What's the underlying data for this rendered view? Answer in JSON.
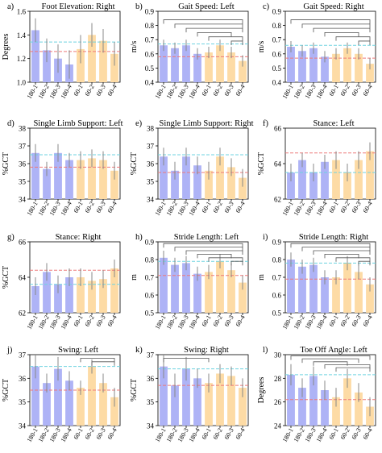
{
  "colors": {
    "blue": "#aeb3f6",
    "orange": "#fddba5",
    "cyan_line": "#6fd3e0",
    "red_line": "#ee7a7a",
    "error": "#888888",
    "bracket": "#555555"
  },
  "categories": [
    "180-1",
    "180-2",
    "180-3",
    "180-4",
    "60-1",
    "60-2",
    "60-3",
    "60-4"
  ],
  "chart_data": [
    {
      "type": "bar",
      "letter": "a)",
      "title": "Foot Elevation: Right",
      "ylabel": "Degrees",
      "ylim": [
        1.0,
        1.6
      ],
      "yticks": [
        1.0,
        1.2,
        1.4,
        1.6
      ],
      "values": [
        1.44,
        1.27,
        1.2,
        1.15,
        1.28,
        1.4,
        1.35,
        1.24
      ],
      "errors": [
        0.1,
        0.1,
        0.12,
        0.12,
        0.12,
        0.1,
        0.1,
        0.1
      ],
      "ref_cyan": 1.34,
      "ref_red": 1.26,
      "brackets": []
    },
    {
      "type": "bar",
      "letter": "b)",
      "title": "Gait Speed: Left",
      "ylabel": "m/s",
      "ylim": [
        0.4,
        0.9
      ],
      "yticks": [
        0.4,
        0.5,
        0.6,
        0.7,
        0.8,
        0.9
      ],
      "values": [
        0.66,
        0.64,
        0.66,
        0.6,
        0.61,
        0.66,
        0.61,
        0.55
      ],
      "errors": [
        0.04,
        0.04,
        0.04,
        0.04,
        0.04,
        0.04,
        0.04,
        0.04
      ],
      "ref_cyan": 0.67,
      "ref_red": 0.58,
      "brackets": [
        [
          0,
          7,
          0.84
        ],
        [
          1,
          7,
          0.81
        ],
        [
          2,
          7,
          0.78
        ],
        [
          3,
          6,
          0.75
        ],
        [
          4,
          7,
          0.72
        ],
        [
          6,
          7,
          0.69
        ]
      ]
    },
    {
      "type": "bar",
      "letter": "c)",
      "title": "Gait Speed: Right",
      "ylabel": "m/s",
      "ylim": [
        0.4,
        0.9
      ],
      "yticks": [
        0.4,
        0.5,
        0.6,
        0.7,
        0.8,
        0.9
      ],
      "values": [
        0.65,
        0.62,
        0.64,
        0.58,
        0.6,
        0.64,
        0.6,
        0.53
      ],
      "errors": [
        0.04,
        0.04,
        0.04,
        0.04,
        0.04,
        0.04,
        0.04,
        0.04
      ],
      "ref_cyan": 0.66,
      "ref_red": 0.57,
      "brackets": [
        [
          0,
          7,
          0.84
        ],
        [
          1,
          7,
          0.81
        ],
        [
          2,
          7,
          0.78
        ],
        [
          3,
          6,
          0.75
        ],
        [
          4,
          7,
          0.72
        ],
        [
          6,
          7,
          0.69
        ]
      ]
    },
    {
      "type": "bar",
      "letter": "d)",
      "title": "Single Limb Support: Left",
      "ylabel": "%GCT",
      "ylim": [
        34,
        38
      ],
      "yticks": [
        34,
        35,
        36,
        37,
        38
      ],
      "values": [
        36.6,
        35.7,
        36.6,
        36.2,
        36.2,
        36.3,
        36.2,
        35.6
      ],
      "errors": [
        0.5,
        0.4,
        0.5,
        0.4,
        0.5,
        0.5,
        0.5,
        0.5
      ],
      "ref_cyan": 36.5,
      "ref_red": 35.8,
      "brackets": []
    },
    {
      "type": "bar",
      "letter": "e)",
      "title": "Single Limb Support: Right",
      "ylabel": "%GCT",
      "ylim": [
        34,
        38
      ],
      "yticks": [
        34,
        35,
        36,
        37,
        38
      ],
      "values": [
        36.4,
        35.6,
        36.4,
        35.9,
        35.6,
        36.4,
        35.8,
        35.2
      ],
      "errors": [
        0.5,
        0.5,
        0.5,
        0.5,
        0.5,
        0.5,
        0.5,
        0.5
      ],
      "ref_cyan": 36.5,
      "ref_red": 35.5,
      "brackets": []
    },
    {
      "type": "bar",
      "letter": "f)",
      "title": "Stance: Left",
      "ylabel": "%GCT",
      "ylim": [
        62,
        66
      ],
      "yticks": [
        62,
        64,
        66
      ],
      "values": [
        63.5,
        64.2,
        63.5,
        64.1,
        64.2,
        63.5,
        64.2,
        64.7
      ],
      "errors": [
        0.5,
        0.4,
        0.5,
        0.4,
        0.5,
        0.5,
        0.5,
        0.5
      ],
      "ref_cyan": 63.5,
      "ref_red": 64.6,
      "brackets": []
    },
    {
      "type": "bar",
      "letter": "g)",
      "title": "Stance: Right",
      "ylabel": "%GCT",
      "ylim": [
        62,
        66
      ],
      "yticks": [
        62,
        64,
        66
      ],
      "values": [
        63.5,
        64.3,
        63.6,
        64.0,
        64.0,
        63.8,
        63.9,
        64.5
      ],
      "errors": [
        0.5,
        0.5,
        0.5,
        0.5,
        0.5,
        0.5,
        0.5,
        0.5
      ],
      "ref_cyan": 63.6,
      "ref_red": 64.4,
      "brackets": []
    },
    {
      "type": "bar",
      "letter": "h)",
      "title": "Stride Length: Left",
      "ylabel": "m",
      "ylim": [
        0.5,
        0.9
      ],
      "yticks": [
        0.5,
        0.6,
        0.7,
        0.8,
        0.9
      ],
      "values": [
        0.81,
        0.77,
        0.78,
        0.72,
        0.73,
        0.79,
        0.74,
        0.67
      ],
      "errors": [
        0.04,
        0.04,
        0.04,
        0.04,
        0.04,
        0.04,
        0.04,
        0.04
      ],
      "ref_cyan": 0.79,
      "ref_red": 0.71,
      "brackets": [
        [
          0,
          7,
          0.89
        ],
        [
          1,
          7,
          0.87
        ],
        [
          2,
          7,
          0.85
        ],
        [
          3,
          6,
          0.83
        ],
        [
          4,
          7,
          0.81
        ],
        [
          6,
          7,
          0.79
        ]
      ]
    },
    {
      "type": "bar",
      "letter": "i)",
      "title": "Stride Length: Right",
      "ylabel": "m",
      "ylim": [
        0.5,
        0.9
      ],
      "yticks": [
        0.5,
        0.6,
        0.7,
        0.8,
        0.9
      ],
      "values": [
        0.8,
        0.76,
        0.77,
        0.7,
        0.7,
        0.78,
        0.73,
        0.66
      ],
      "errors": [
        0.04,
        0.04,
        0.04,
        0.04,
        0.04,
        0.04,
        0.04,
        0.04
      ],
      "ref_cyan": 0.78,
      "ref_red": 0.69,
      "brackets": [
        [
          0,
          7,
          0.89
        ],
        [
          1,
          7,
          0.87
        ],
        [
          2,
          7,
          0.85
        ],
        [
          3,
          6,
          0.83
        ],
        [
          4,
          7,
          0.81
        ],
        [
          6,
          7,
          0.79
        ]
      ]
    },
    {
      "type": "bar",
      "letter": "j)",
      "title": "Swing: Left",
      "ylabel": "%GCT",
      "ylim": [
        34,
        37
      ],
      "yticks": [
        34,
        35,
        36,
        37
      ],
      "values": [
        36.5,
        35.8,
        36.4,
        35.9,
        35.6,
        36.5,
        35.8,
        35.2
      ],
      "errors": [
        0.5,
        0.4,
        0.5,
        0.4,
        0.3,
        0.3,
        0.4,
        0.4
      ],
      "ref_cyan": 36.5,
      "ref_red": 35.5,
      "brackets": [
        [
          4,
          7,
          36.85
        ],
        [
          5,
          7,
          36.7
        ]
      ]
    },
    {
      "type": "bar",
      "letter": "k)",
      "title": "Swing: Right",
      "ylabel": "%GCT",
      "ylim": [
        34,
        37
      ],
      "yticks": [
        34,
        35,
        36,
        37
      ],
      "values": [
        36.5,
        35.7,
        36.4,
        36.0,
        35.8,
        36.2,
        36.1,
        35.6
      ],
      "errors": [
        0.5,
        0.5,
        0.5,
        0.4,
        0.4,
        0.4,
        0.4,
        0.4
      ],
      "ref_cyan": 36.4,
      "ref_red": 35.7,
      "brackets": [
        [
          0,
          4,
          36.85
        ]
      ]
    },
    {
      "type": "bar",
      "letter": "l)",
      "title": "Toe Off Angle: Left",
      "ylabel": "Degrees",
      "ylim": [
        24,
        30
      ],
      "yticks": [
        24,
        26,
        28,
        30
      ],
      "values": [
        28.3,
        27.2,
        28.2,
        27.0,
        26.4,
        28.0,
        26.8,
        25.6
      ],
      "errors": [
        0.9,
        0.8,
        0.8,
        0.8,
        0.8,
        0.8,
        0.8,
        0.8
      ],
      "ref_cyan": 28.3,
      "ref_red": 26.2,
      "brackets": [
        [
          0,
          7,
          29.9
        ],
        [
          1,
          6,
          29.65
        ],
        [
          2,
          5,
          29.4
        ],
        [
          3,
          7,
          29.15
        ],
        [
          4,
          7,
          28.9
        ]
      ]
    }
  ]
}
